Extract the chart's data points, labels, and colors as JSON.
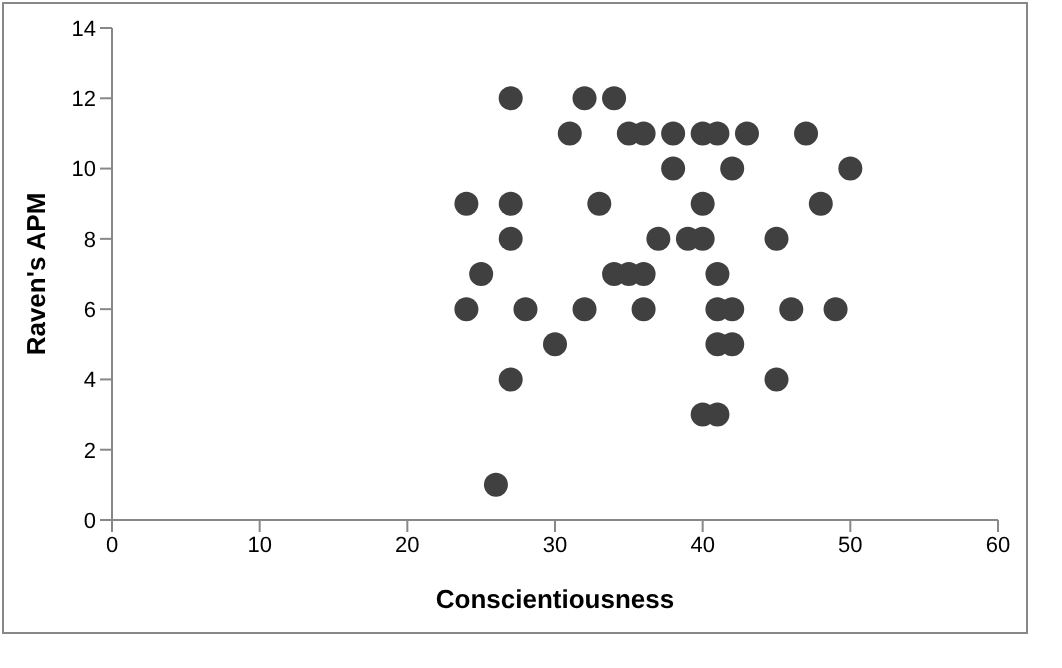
{
  "chart_data": {
    "type": "scatter",
    "xlabel": "Conscientiousness",
    "ylabel": "Raven's APM",
    "x": [
      27,
      32,
      34,
      31,
      35,
      36,
      38,
      40,
      41,
      43,
      47,
      38,
      42,
      50,
      24,
      27,
      33,
      40,
      48,
      27,
      37,
      39,
      40,
      45,
      25,
      34,
      35,
      36,
      41,
      24,
      28,
      32,
      36,
      41,
      42,
      46,
      49,
      30,
      41,
      42,
      27,
      45,
      40,
      41,
      26
    ],
    "values": [
      12,
      12,
      12,
      11,
      11,
      11,
      11,
      11,
      11,
      11,
      11,
      10,
      10,
      10,
      9,
      9,
      9,
      9,
      9,
      8,
      8,
      8,
      8,
      8,
      7,
      7,
      7,
      7,
      7,
      6,
      6,
      6,
      6,
      6,
      6,
      6,
      6,
      5,
      5,
      5,
      4,
      4,
      3,
      3,
      1
    ],
    "color": "#404040",
    "marker": "circle",
    "xlim": [
      0,
      60
    ],
    "xticks": [
      0,
      10,
      20,
      30,
      40,
      50,
      60
    ],
    "ylim": [
      0,
      14
    ],
    "yticks": [
      0,
      2,
      4,
      6,
      8,
      10,
      12,
      14
    ],
    "grid": false,
    "legend": false
  }
}
